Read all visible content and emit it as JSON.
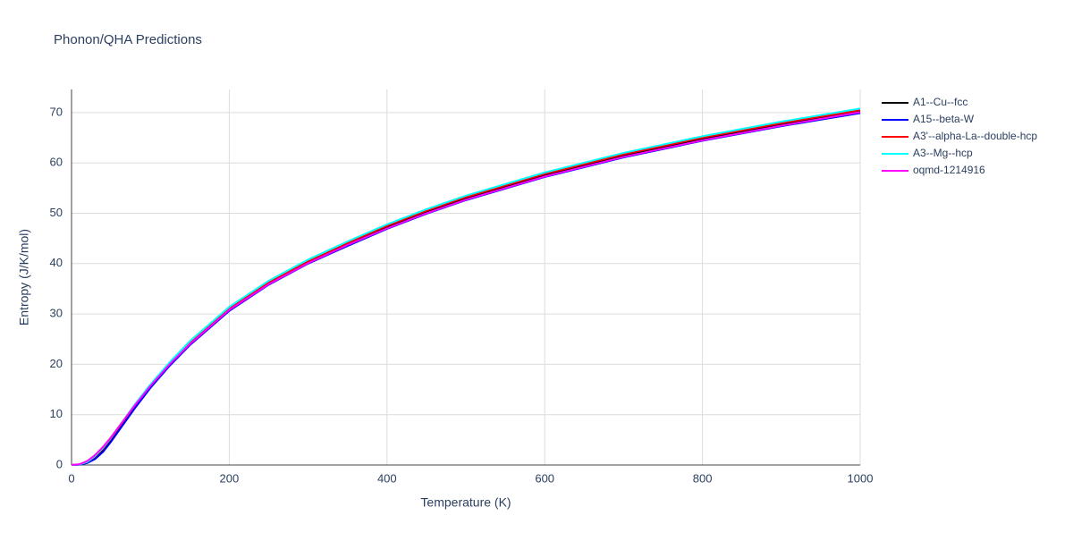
{
  "chart_data": {
    "type": "line",
    "title": "Phonon/QHA Predictions",
    "x_label": "Temperature (K)",
    "y_label": "Entropy (J/K/mol)",
    "x": [
      0,
      10,
      20,
      30,
      40,
      50,
      60,
      80,
      100,
      125,
      150,
      200,
      250,
      300,
      350,
      400,
      450,
      500,
      600,
      700,
      800,
      900,
      1000
    ],
    "series": [
      {
        "name": "A1--Cu--fcc",
        "color": "#000000",
        "values": [
          0,
          0.1,
          0.5,
          1.5,
          3,
          5,
          7.2,
          11.5,
          15.5,
          20,
          24,
          30.8,
          36,
          40.2,
          43.8,
          47.2,
          50.2,
          52.9,
          57.5,
          61.4,
          64.7,
          67.6,
          70.2
        ]
      },
      {
        "name": "A15--beta-W",
        "color": "#0000ff",
        "values": [
          0,
          0.05,
          0.4,
          1.2,
          2.6,
          4.6,
          6.8,
          11.2,
          15.3,
          19.8,
          23.8,
          30.6,
          35.8,
          40,
          43.5,
          46.9,
          49.9,
          52.6,
          57.2,
          61.1,
          64.4,
          67.3,
          69.9
        ]
      },
      {
        "name": "A3'--alpha-La--double-hcp",
        "color": "#ff0000",
        "values": [
          0,
          0.1,
          0.6,
          1.7,
          3.3,
          5.3,
          7.5,
          11.8,
          15.8,
          20.3,
          24.3,
          31.1,
          36.3,
          40.5,
          44.1,
          47.5,
          50.5,
          53.2,
          57.8,
          61.7,
          65,
          67.9,
          70.5
        ]
      },
      {
        "name": "A3--Mg--hcp",
        "color": "#00ffff",
        "values": [
          0,
          0.1,
          0.6,
          1.8,
          3.4,
          5.4,
          7.6,
          12,
          16,
          20.5,
          24.6,
          31.4,
          36.6,
          40.8,
          44.4,
          47.8,
          50.8,
          53.5,
          58.1,
          62,
          65.3,
          68.2,
          70.8
        ]
      },
      {
        "name": "oqmd-1214916",
        "color": "#ff00ff",
        "values": [
          0,
          0.15,
          0.8,
          2,
          3.6,
          5.5,
          7.6,
          11.8,
          15.7,
          20.1,
          24,
          30.8,
          35.9,
          40.1,
          43.7,
          47,
          50,
          52.7,
          57.3,
          61.2,
          64.5,
          67.4,
          70.1
        ]
      }
    ],
    "xlim": [
      0,
      1000
    ],
    "ylim": [
      0,
      74.6
    ],
    "xticks": [
      0,
      200,
      400,
      600,
      800,
      1000
    ],
    "yticks": [
      0,
      10,
      20,
      30,
      40,
      50,
      60,
      70
    ],
    "grid": true,
    "legend": "right"
  }
}
